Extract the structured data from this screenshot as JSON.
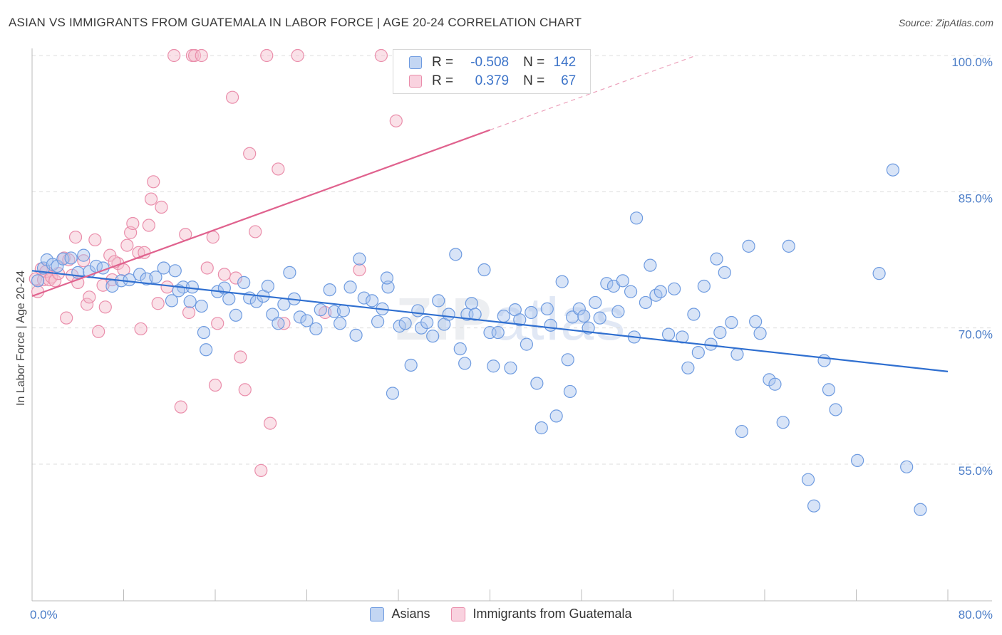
{
  "header": {
    "title": "ASIAN VS IMMIGRANTS FROM GUATEMALA IN LABOR FORCE | AGE 20-24 CORRELATION CHART",
    "source": "Source: ZipAtlas.com"
  },
  "watermark": {
    "zip": "ZIP",
    "atlas": "atlas"
  },
  "legend": {
    "asians": {
      "r_label": "R =",
      "r_value": "-0.508",
      "n_label": "N =",
      "n_value": "142"
    },
    "guatemala": {
      "r_label": "R =",
      "r_value": "0.379",
      "n_label": "N =",
      "n_value": "67"
    }
  },
  "bottom_legend": {
    "asians": "Asians",
    "guatemala": "Immigrants from Guatemala"
  },
  "colors": {
    "asians_fill": "#a9c4ee",
    "asians_stroke": "#6e9be0",
    "asians_line": "#2f6fd0",
    "guatemala_fill": "#f5bccd",
    "guatemala_stroke": "#ea8eab",
    "guatemala_line": "#e0628e",
    "tick_text": "#4a7cc7"
  },
  "chart_data": {
    "type": "scatter",
    "title": "ASIAN VS IMMIGRANTS FROM GUATEMALA IN LABOR FORCE | AGE 20-24 CORRELATION CHART",
    "xlabel": "",
    "ylabel": "In Labor Force | Age 20-24",
    "xlim": [
      0,
      80
    ],
    "ylim": [
      40,
      101.5
    ],
    "x_tick_labels": [
      "0.0%",
      "80.0%"
    ],
    "y_ticks": [
      55,
      70,
      85,
      100
    ],
    "y_tick_labels": [
      "55.0%",
      "70.0%",
      "85.0%",
      "100.0%"
    ],
    "series": [
      {
        "name": "Asians",
        "r": -0.508,
        "n": 142,
        "trend": {
          "x": [
            0,
            80
          ],
          "y": [
            76.3,
            65.2
          ]
        },
        "points": [
          [
            0.5,
            75.2
          ],
          [
            1.0,
            76.6
          ],
          [
            1.3,
            77.5
          ],
          [
            1.8,
            77.0
          ],
          [
            2.2,
            76.8
          ],
          [
            2.7,
            77.6
          ],
          [
            3.4,
            77.7
          ],
          [
            4.0,
            76.1
          ],
          [
            4.5,
            78.0
          ],
          [
            5.0,
            76.2
          ],
          [
            5.6,
            76.8
          ],
          [
            6.2,
            76.6
          ],
          [
            7.0,
            74.6
          ],
          [
            7.8,
            75.2
          ],
          [
            8.5,
            75.3
          ],
          [
            9.4,
            75.9
          ],
          [
            10.0,
            75.4
          ],
          [
            10.8,
            75.6
          ],
          [
            11.5,
            76.6
          ],
          [
            12.2,
            73.0
          ],
          [
            12.5,
            76.3
          ],
          [
            13.2,
            74.5
          ],
          [
            13.8,
            72.9
          ],
          [
            14.0,
            74.5
          ],
          [
            14.8,
            72.4
          ],
          [
            15.0,
            69.5
          ],
          [
            15.2,
            67.6
          ],
          [
            16.2,
            74.0
          ],
          [
            16.8,
            74.4
          ],
          [
            17.2,
            73.2
          ],
          [
            17.8,
            71.4
          ],
          [
            18.5,
            75.0
          ],
          [
            19.0,
            73.3
          ],
          [
            19.6,
            72.9
          ],
          [
            20.2,
            73.5
          ],
          [
            20.6,
            74.6
          ],
          [
            21.0,
            71.5
          ],
          [
            21.5,
            70.5
          ],
          [
            22.0,
            72.6
          ],
          [
            22.5,
            76.1
          ],
          [
            22.9,
            73.2
          ],
          [
            23.4,
            71.2
          ],
          [
            24.0,
            70.8
          ],
          [
            24.8,
            69.9
          ],
          [
            25.2,
            72.0
          ],
          [
            26.0,
            74.2
          ],
          [
            26.4,
            71.8
          ],
          [
            27.2,
            71.9
          ],
          [
            27.8,
            74.5
          ],
          [
            28.3,
            69.2
          ],
          [
            28.6,
            77.6
          ],
          [
            29.0,
            73.3
          ],
          [
            29.7,
            73.0
          ],
          [
            30.2,
            70.7
          ],
          [
            30.6,
            72.1
          ],
          [
            31.1,
            74.5
          ],
          [
            31.5,
            62.8
          ],
          [
            32.1,
            70.2
          ],
          [
            32.6,
            70.5
          ],
          [
            33.1,
            65.9
          ],
          [
            33.7,
            71.9
          ],
          [
            34.0,
            70.0
          ],
          [
            34.5,
            70.6
          ],
          [
            35.0,
            69.1
          ],
          [
            35.5,
            73.0
          ],
          [
            36.0,
            70.4
          ],
          [
            36.4,
            71.5
          ],
          [
            37.0,
            78.1
          ],
          [
            37.4,
            67.7
          ],
          [
            38.0,
            71.5
          ],
          [
            38.4,
            72.7
          ],
          [
            38.7,
            71.5
          ],
          [
            39.5,
            76.4
          ],
          [
            40.0,
            69.5
          ],
          [
            40.3,
            65.8
          ],
          [
            40.7,
            69.5
          ],
          [
            41.2,
            71.3
          ],
          [
            41.8,
            65.6
          ],
          [
            42.2,
            72.0
          ],
          [
            42.6,
            70.9
          ],
          [
            43.2,
            68.2
          ],
          [
            43.6,
            71.7
          ],
          [
            44.1,
            63.9
          ],
          [
            44.5,
            59.0
          ],
          [
            45.0,
            72.1
          ],
          [
            45.3,
            70.3
          ],
          [
            45.8,
            60.3
          ],
          [
            46.3,
            75.1
          ],
          [
            46.8,
            66.5
          ],
          [
            47.2,
            71.2
          ],
          [
            47.8,
            72.1
          ],
          [
            48.2,
            71.3
          ],
          [
            48.6,
            70.0
          ],
          [
            49.2,
            72.8
          ],
          [
            49.6,
            71.1
          ],
          [
            50.2,
            74.9
          ],
          [
            50.8,
            74.6
          ],
          [
            51.2,
            71.8
          ],
          [
            51.6,
            75.2
          ],
          [
            52.3,
            74.0
          ],
          [
            52.6,
            69.0
          ],
          [
            52.8,
            82.1
          ],
          [
            53.6,
            72.8
          ],
          [
            54.0,
            76.9
          ],
          [
            54.5,
            73.6
          ],
          [
            54.9,
            74.0
          ],
          [
            55.6,
            69.3
          ],
          [
            56.1,
            74.3
          ],
          [
            56.8,
            69.0
          ],
          [
            57.3,
            65.6
          ],
          [
            57.8,
            71.5
          ],
          [
            58.2,
            67.3
          ],
          [
            58.7,
            74.6
          ],
          [
            59.3,
            68.2
          ],
          [
            59.8,
            77.6
          ],
          [
            60.1,
            69.5
          ],
          [
            60.5,
            76.1
          ],
          [
            61.1,
            70.6
          ],
          [
            61.6,
            67.1
          ],
          [
            62.0,
            58.6
          ],
          [
            62.6,
            79.0
          ],
          [
            63.2,
            70.7
          ],
          [
            63.6,
            69.4
          ],
          [
            64.4,
            64.3
          ],
          [
            64.9,
            63.8
          ],
          [
            65.6,
            59.6
          ],
          [
            66.1,
            79.0
          ],
          [
            67.8,
            53.3
          ],
          [
            68.3,
            50.4
          ],
          [
            69.2,
            66.4
          ],
          [
            69.6,
            63.2
          ],
          [
            70.2,
            61.0
          ],
          [
            72.1,
            55.4
          ],
          [
            74.0,
            76.0
          ],
          [
            75.2,
            87.4
          ],
          [
            76.4,
            54.7
          ],
          [
            77.6,
            50.0
          ],
          [
            31.0,
            75.5
          ],
          [
            12.8,
            74.1
          ],
          [
            26.9,
            70.5
          ],
          [
            37.8,
            66.1
          ],
          [
            47.0,
            63.0
          ]
        ]
      },
      {
        "name": "Immigrants from Guatemala",
        "r": 0.379,
        "n": 67,
        "trend": {
          "x": [
            0,
            40
          ],
          "y": [
            73.5,
            91.8
          ]
        },
        "trend_dashed": {
          "x": [
            40,
            58
          ],
          "y": [
            91.8,
            100
          ]
        },
        "points": [
          [
            0.3,
            75.4
          ],
          [
            0.5,
            74.0
          ],
          [
            0.8,
            76.5
          ],
          [
            1.0,
            75.3
          ],
          [
            1.2,
            76.2
          ],
          [
            1.5,
            75.3
          ],
          [
            1.7,
            75.6
          ],
          [
            2.0,
            75.2
          ],
          [
            2.3,
            76.0
          ],
          [
            2.8,
            77.7
          ],
          [
            3.0,
            71.1
          ],
          [
            3.2,
            77.5
          ],
          [
            3.5,
            75.8
          ],
          [
            3.8,
            80.0
          ],
          [
            4.0,
            75.0
          ],
          [
            4.5,
            77.4
          ],
          [
            4.8,
            72.6
          ],
          [
            5.0,
            73.4
          ],
          [
            5.5,
            79.7
          ],
          [
            5.8,
            69.6
          ],
          [
            6.2,
            74.7
          ],
          [
            6.4,
            72.3
          ],
          [
            6.8,
            78.0
          ],
          [
            7.0,
            75.3
          ],
          [
            7.5,
            77.1
          ],
          [
            8.0,
            76.4
          ],
          [
            8.3,
            79.1
          ],
          [
            8.6,
            80.5
          ],
          [
            8.8,
            81.5
          ],
          [
            9.3,
            78.3
          ],
          [
            9.5,
            69.9
          ],
          [
            9.8,
            78.3
          ],
          [
            10.2,
            81.3
          ],
          [
            10.4,
            84.2
          ],
          [
            10.6,
            86.1
          ],
          [
            11.0,
            72.7
          ],
          [
            11.3,
            83.3
          ],
          [
            11.8,
            74.5
          ],
          [
            12.4,
            100.0
          ],
          [
            13.0,
            61.3
          ],
          [
            13.4,
            80.3
          ],
          [
            13.7,
            71.7
          ],
          [
            14.0,
            100.0
          ],
          [
            14.2,
            100.0
          ],
          [
            14.8,
            100.0
          ],
          [
            15.3,
            76.6
          ],
          [
            15.8,
            80.0
          ],
          [
            16.0,
            63.7
          ],
          [
            16.2,
            70.5
          ],
          [
            16.8,
            75.9
          ],
          [
            17.5,
            95.4
          ],
          [
            17.8,
            75.5
          ],
          [
            18.2,
            66.8
          ],
          [
            18.6,
            63.2
          ],
          [
            19.0,
            89.2
          ],
          [
            19.5,
            80.6
          ],
          [
            20.0,
            54.3
          ],
          [
            20.5,
            100.0
          ],
          [
            20.8,
            59.5
          ],
          [
            21.5,
            87.5
          ],
          [
            22.0,
            70.5
          ],
          [
            23.2,
            100.0
          ],
          [
            25.6,
            71.7
          ],
          [
            28.6,
            76.4
          ],
          [
            30.5,
            100.0
          ],
          [
            31.8,
            92.8
          ],
          [
            7.2,
            77.3
          ]
        ]
      }
    ]
  }
}
